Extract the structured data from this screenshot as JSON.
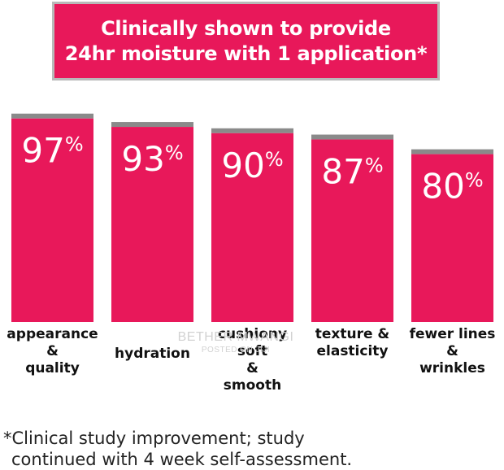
{
  "header": {
    "title_line1": "Clinically shown to provide",
    "title_line2": "24hr moisture with 1 application*",
    "background_color": "#e8185a"
  },
  "chart_data": {
    "type": "bar",
    "categories": [
      [
        "appearance",
        "&",
        "quality"
      ],
      [
        "hydration"
      ],
      [
        "cushiony",
        "soft",
        "&",
        "smooth"
      ],
      [
        "texture &",
        "elasticity"
      ],
      [
        "fewer lines",
        "&",
        "wrinkles"
      ]
    ],
    "values": [
      97,
      93,
      90,
      87,
      80
    ],
    "value_labels": [
      "97%",
      "93%",
      "90%",
      "87%",
      "80%"
    ],
    "ylim": [
      0,
      100
    ],
    "bar_color": "#e8185a",
    "bar_cap_color": "#8a8a8a",
    "grid": false,
    "legend": "none"
  },
  "watermark": {
    "line1": "BETHER MWANGI",
    "line2": "POSTED ON JIJI"
  },
  "footnote": {
    "line1": "*Clinical study improvement; study",
    "line2": "continued with 4 week self-assessment."
  }
}
